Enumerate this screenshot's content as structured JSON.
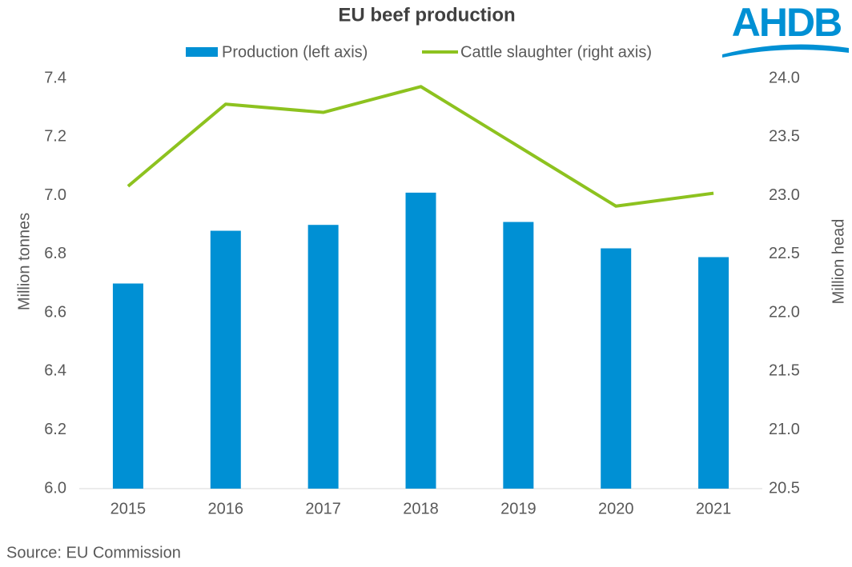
{
  "chart_data": {
    "type": "bar-line",
    "title": "EU beef production",
    "logo": "AHDB",
    "source": "Source: EU Commission",
    "ylabel": "Million tonnes",
    "y2label": "Million head",
    "categories": [
      "2015",
      "2016",
      "2017",
      "2018",
      "2019",
      "2020",
      "2021"
    ],
    "series": [
      {
        "name": "Production (left axis)",
        "type": "bar",
        "color": "#0090d4",
        "values": [
          6.7,
          6.88,
          6.9,
          7.01,
          6.91,
          6.82,
          6.79
        ]
      },
      {
        "name": "Cattle slaughter (right axis)",
        "type": "line",
        "axis": "y2",
        "color": "#8dc21f",
        "values": [
          23.08,
          23.78,
          23.71,
          23.93,
          23.42,
          22.91,
          23.02
        ]
      }
    ],
    "ylim": [
      6.0,
      7.4
    ],
    "yticks": [
      {
        "value": 6.0,
        "label": "6.0"
      },
      6.2,
      6.4,
      6.6,
      6.8,
      {
        "value": 7.0,
        "label": "7.0"
      },
      7.2,
      7.4
    ],
    "y2lim": [
      20.5,
      24.0
    ],
    "y2ticks": [
      20.5,
      {
        "value": 21.0,
        "label": "21.0"
      },
      21.5,
      {
        "value": 22.0,
        "label": "22.0"
      },
      22.5,
      {
        "value": 23.0,
        "label": "23.0"
      },
      23.5,
      {
        "value": 24.0,
        "label": "24.0"
      }
    ],
    "grid": false,
    "legend": "top"
  }
}
